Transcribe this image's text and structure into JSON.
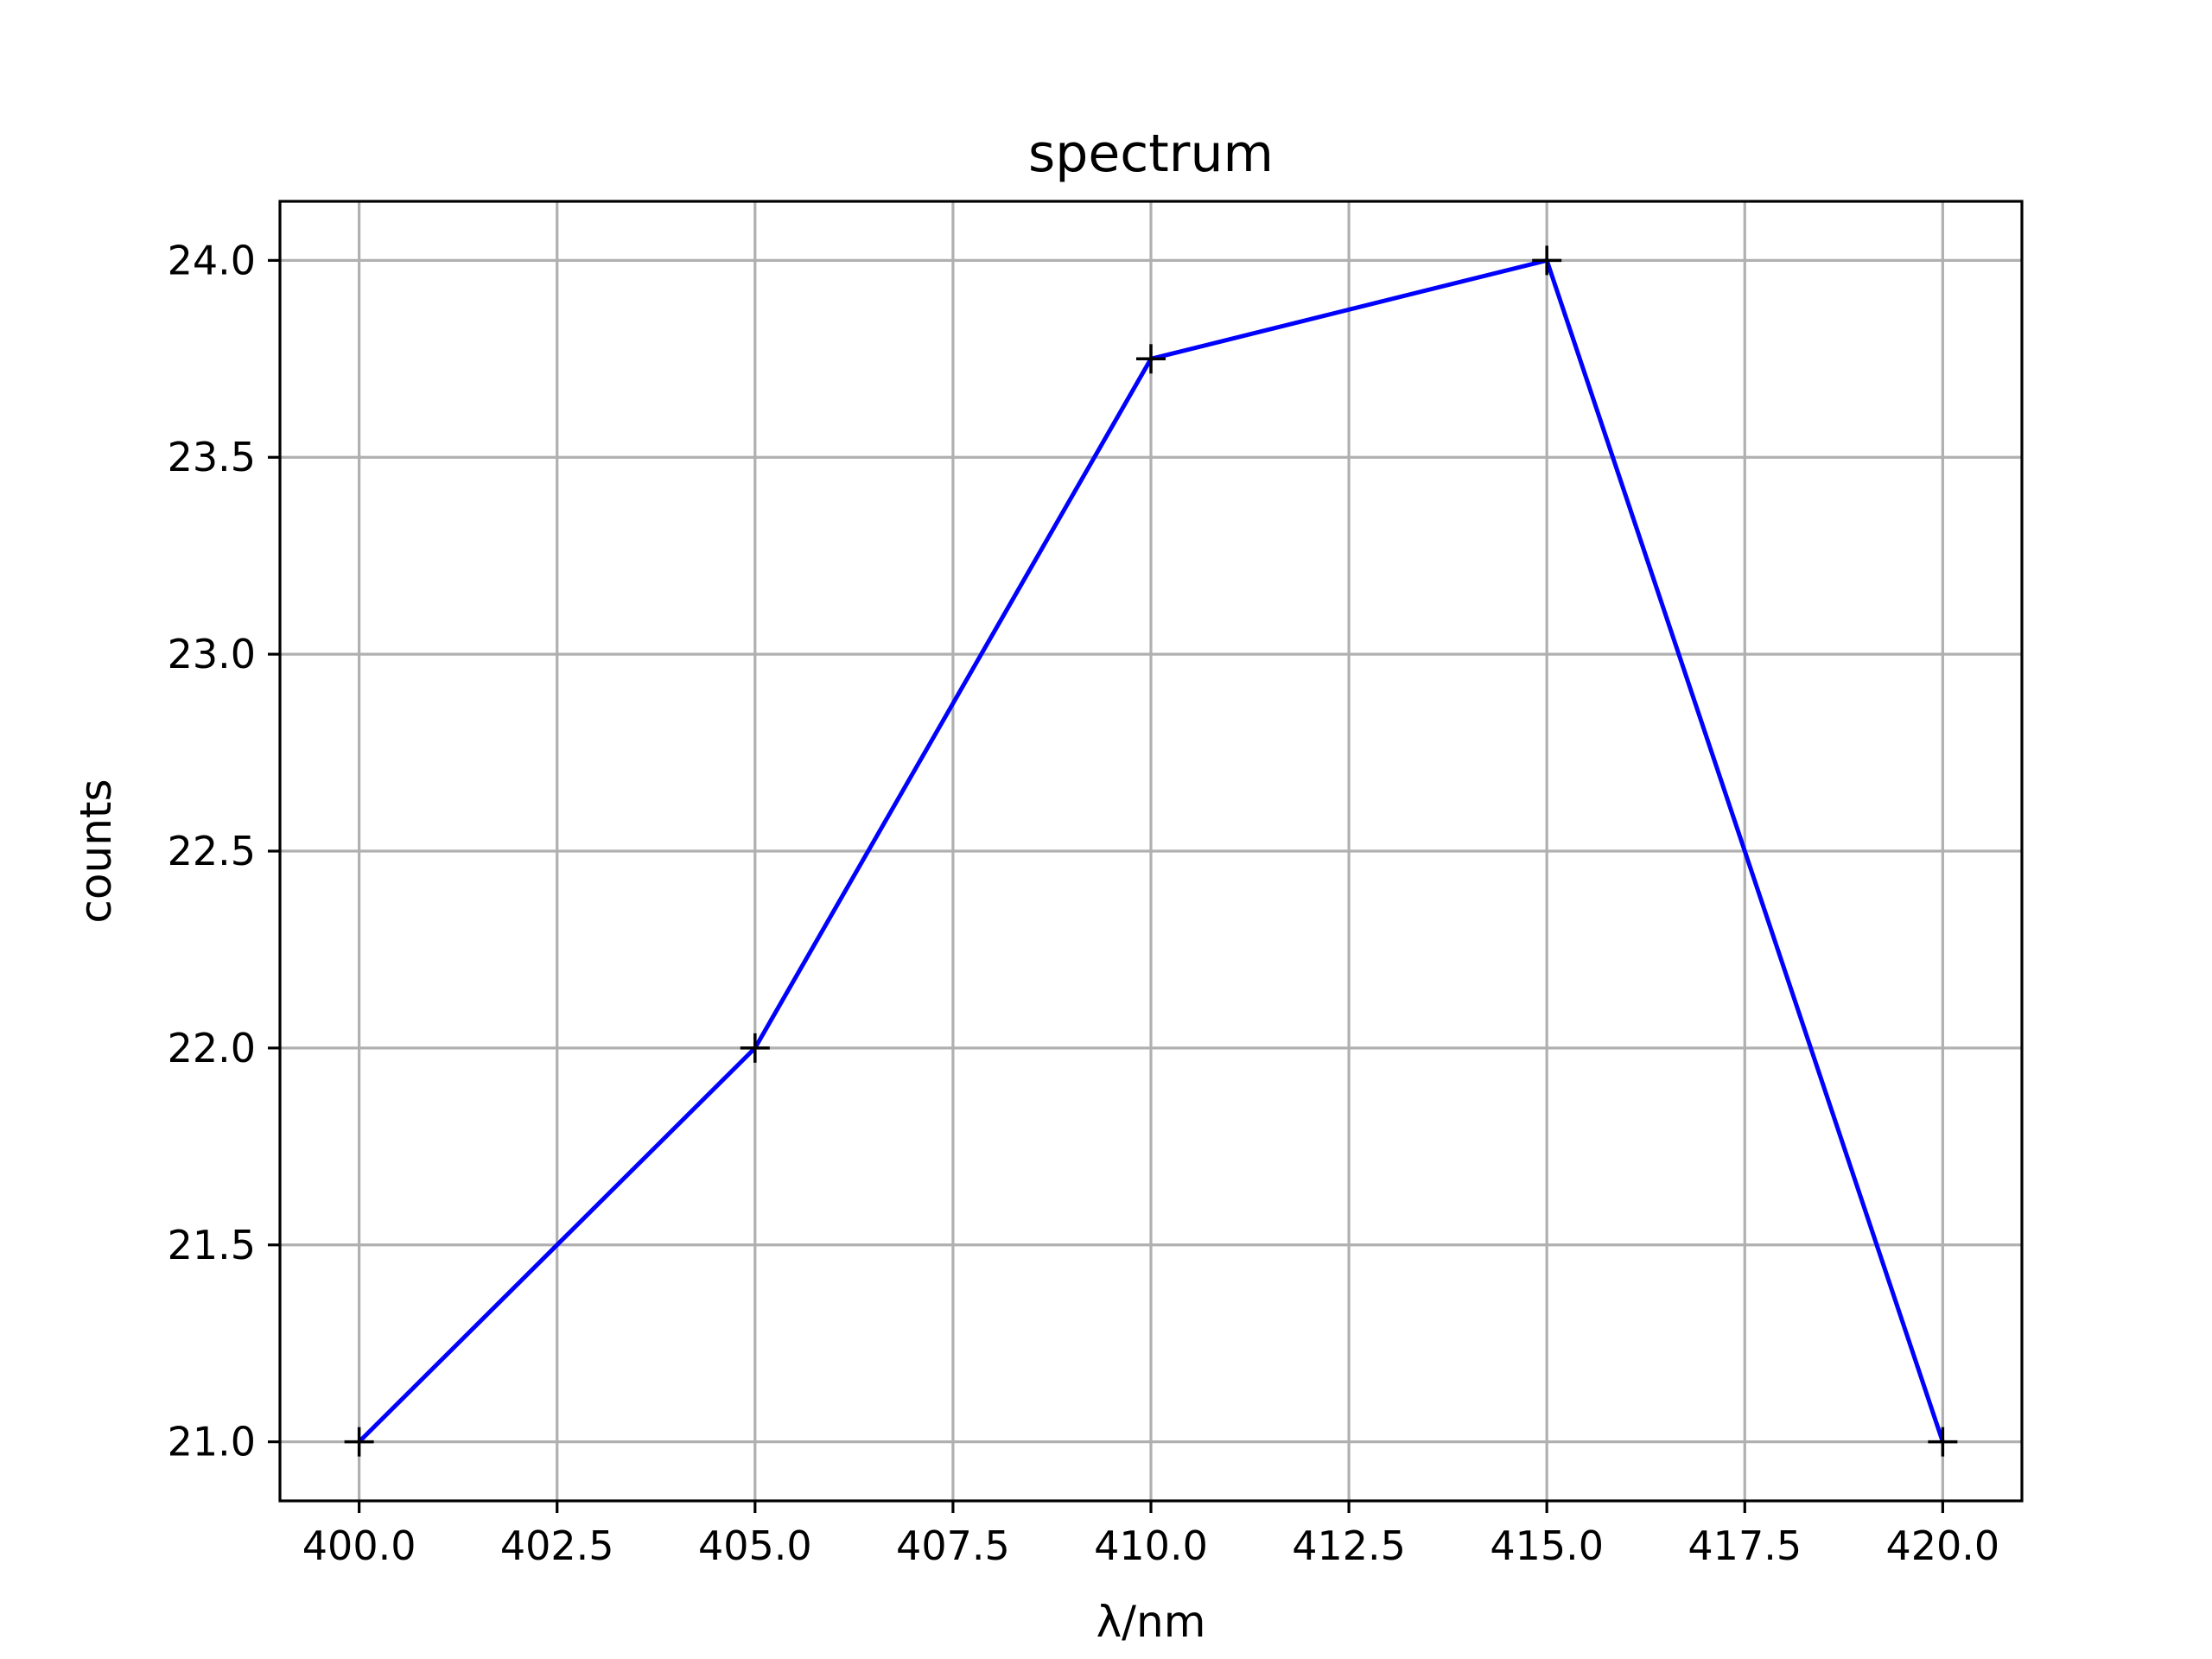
{
  "chart_data": {
    "type": "line",
    "title": "spectrum",
    "xlabel": "λ/nm",
    "ylabel": "counts",
    "xlim": [
      399.0,
      421.0
    ],
    "ylim": [
      20.85,
      24.15
    ],
    "xticks": [
      400.0,
      402.5,
      405.0,
      407.5,
      410.0,
      412.5,
      415.0,
      417.5,
      420.0
    ],
    "xtick_labels": [
      "400.0",
      "402.5",
      "405.0",
      "407.5",
      "410.0",
      "412.5",
      "415.0",
      "417.5",
      "420.0"
    ],
    "yticks": [
      21.0,
      21.5,
      22.0,
      22.5,
      23.0,
      23.5,
      24.0
    ],
    "ytick_labels": [
      "21.0",
      "21.5",
      "22.0",
      "22.5",
      "23.0",
      "23.5",
      "24.0"
    ],
    "grid": true,
    "series": [
      {
        "x": [
          400,
          405,
          410,
          415,
          420
        ],
        "y": [
          21.0,
          22.0,
          23.75,
          24.0,
          21.0
        ],
        "color": "#0000ff",
        "marker": "+",
        "marker_color": "#000000"
      }
    ]
  }
}
